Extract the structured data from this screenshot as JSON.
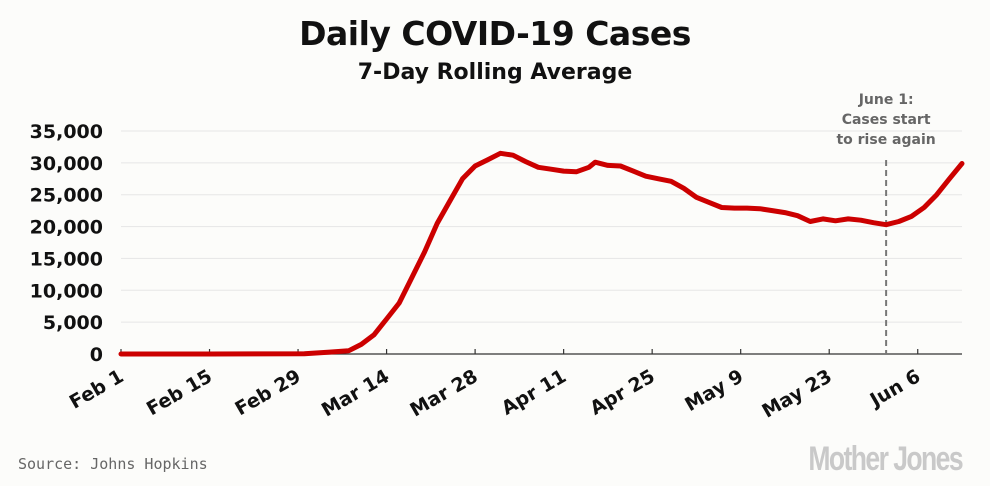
{
  "chart_data": {
    "type": "line",
    "title": "Daily COVID-19 Cases",
    "subtitle": "7-Day Rolling Average",
    "xlabel": "",
    "ylabel": "",
    "ylim": [
      0,
      35000
    ],
    "yticks": [
      0,
      5000,
      10000,
      15000,
      20000,
      25000,
      30000,
      35000
    ],
    "ytick_labels": [
      "0",
      "5,000",
      "10,000",
      "15,000",
      "20,000",
      "25,000",
      "30,000",
      "35,000"
    ],
    "x_start": "2020-02-01",
    "x_end": "2020-06-13",
    "xticks": [
      "2020-02-01",
      "2020-02-15",
      "2020-02-29",
      "2020-03-14",
      "2020-03-28",
      "2020-04-11",
      "2020-04-25",
      "2020-05-09",
      "2020-05-23",
      "2020-06-06"
    ],
    "xtick_labels": [
      "Feb 1",
      "Feb 15",
      "Feb 29",
      "Mar 14",
      "Mar 28",
      "Apr 11",
      "Apr 25",
      "May 9",
      "May 23",
      "Jun 6"
    ],
    "grid": true,
    "line_color": "#cc0000",
    "series": [
      {
        "x": [
          "2020-02-01",
          "2020-02-15",
          "2020-03-01",
          "2020-03-05",
          "2020-03-08",
          "2020-03-10",
          "2020-03-12",
          "2020-03-14",
          "2020-03-16",
          "2020-03-18",
          "2020-03-20",
          "2020-03-22",
          "2020-03-24",
          "2020-03-26",
          "2020-03-28",
          "2020-03-30",
          "2020-04-01",
          "2020-04-03",
          "2020-04-05",
          "2020-04-07",
          "2020-04-09",
          "2020-04-11",
          "2020-04-13",
          "2020-04-15",
          "2020-04-16",
          "2020-04-18",
          "2020-04-20",
          "2020-04-22",
          "2020-04-24",
          "2020-04-26",
          "2020-04-28",
          "2020-04-30",
          "2020-05-02",
          "2020-05-04",
          "2020-05-06",
          "2020-05-08",
          "2020-05-10",
          "2020-05-12",
          "2020-05-14",
          "2020-05-16",
          "2020-05-18",
          "2020-05-20",
          "2020-05-22",
          "2020-05-24",
          "2020-05-26",
          "2020-05-28",
          "2020-05-30",
          "2020-06-01",
          "2020-06-03",
          "2020-06-05",
          "2020-06-07",
          "2020-06-09",
          "2020-06-11",
          "2020-06-13"
        ],
        "values": [
          0,
          0,
          50,
          300,
          500,
          1500,
          3000,
          5500,
          8000,
          12000,
          16000,
          20500,
          24000,
          27500,
          29500,
          30500,
          31500,
          31200,
          30200,
          29300,
          29000,
          28700,
          28600,
          29300,
          30100,
          29600,
          29500,
          28700,
          27900,
          27500,
          27100,
          26000,
          24600,
          23800,
          23000,
          22900,
          22900,
          22800,
          22500,
          22200,
          21700,
          20800,
          21200,
          20900,
          21200,
          21000,
          20600,
          20300,
          20800,
          21600,
          23000,
          25000,
          27500,
          29900
        ]
      }
    ],
    "annotations": [
      {
        "date": "2020-06-01",
        "lines": [
          "June 1:",
          "Cases start",
          "to rise again"
        ]
      }
    ]
  },
  "source": "Source: Johns Hopkins",
  "logo": "Mother Jones"
}
